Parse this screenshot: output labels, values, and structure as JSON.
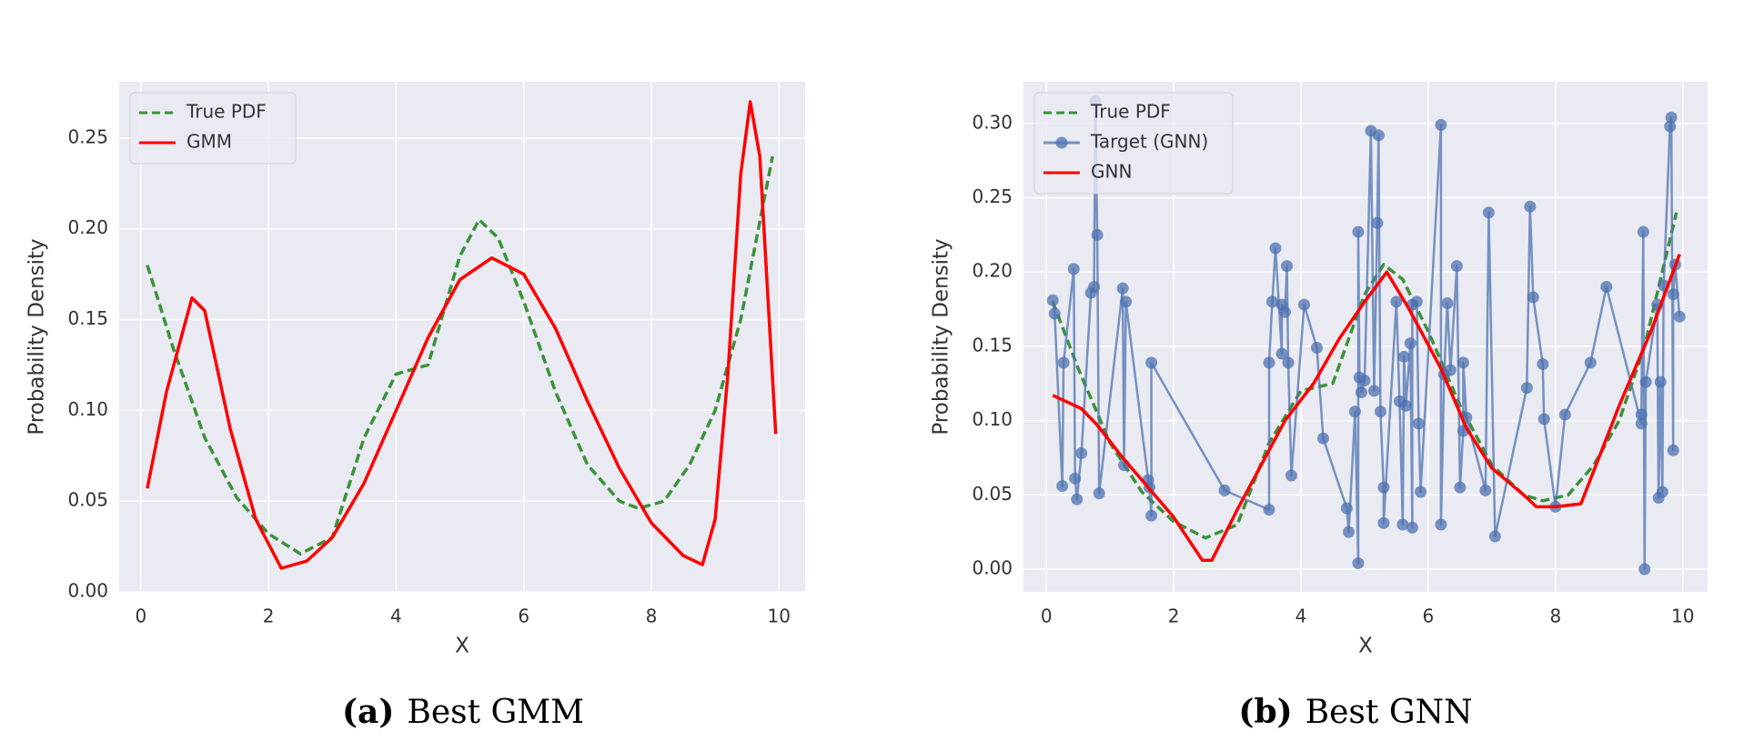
{
  "chart_data": [
    {
      "type": "line",
      "xlabel": "X",
      "ylabel": "Probability Density",
      "caption_label": "(a)",
      "caption": "Best GMM",
      "xlim": [
        -0.34,
        10.41
      ],
      "ylim": [
        0,
        0.281
      ],
      "xticks": [
        0,
        2,
        4,
        6,
        8,
        10
      ],
      "yticks": [
        {
          "value": 0,
          "label": "0.00"
        },
        {
          "value": 0.05,
          "label": "0.05"
        },
        {
          "value": 0.1,
          "label": "0.10"
        },
        {
          "value": 0.15,
          "label": "0.15"
        },
        {
          "value": 0.2,
          "label": "0.20"
        },
        {
          "value": 0.25,
          "label": "0.25"
        }
      ],
      "grid": true,
      "legend": "upper left",
      "series": [
        {
          "name": "True PDF",
          "color": "#3a923a",
          "style": "dashed",
          "x": [
            0.1,
            0.5,
            1.0,
            1.5,
            2.0,
            2.5,
            3.0,
            3.5,
            4.0,
            4.5,
            5.0,
            5.3,
            5.6,
            6.0,
            6.5,
            7.0,
            7.5,
            7.8,
            8.2,
            8.6,
            9.0,
            9.4,
            9.9
          ],
          "values": [
            0.18,
            0.135,
            0.085,
            0.052,
            0.032,
            0.021,
            0.03,
            0.085,
            0.12,
            0.125,
            0.185,
            0.205,
            0.195,
            0.16,
            0.11,
            0.07,
            0.05,
            0.046,
            0.05,
            0.07,
            0.1,
            0.15,
            0.24
          ]
        },
        {
          "name": "GMM",
          "color": "#ff0000",
          "style": "solid",
          "x": [
            0.1,
            0.4,
            0.8,
            1.0,
            1.4,
            1.8,
            2.2,
            2.6,
            3.0,
            3.5,
            4.0,
            4.5,
            5.0,
            5.5,
            6.0,
            6.5,
            7.0,
            7.5,
            8.0,
            8.5,
            8.8,
            9.0,
            9.2,
            9.4,
            9.55,
            9.7,
            9.95
          ],
          "values": [
            0.057,
            0.11,
            0.162,
            0.155,
            0.09,
            0.04,
            0.013,
            0.017,
            0.03,
            0.06,
            0.1,
            0.14,
            0.172,
            0.184,
            0.175,
            0.145,
            0.105,
            0.068,
            0.038,
            0.02,
            0.015,
            0.04,
            0.12,
            0.23,
            0.27,
            0.24,
            0.087
          ]
        }
      ]
    },
    {
      "type": "line",
      "xlabel": "X",
      "ylabel": "Probability Density",
      "caption_label": "(b)",
      "caption": "Best GNN",
      "xlim": [
        -0.36,
        10.39
      ],
      "ylim": [
        -0.0153,
        0.328
      ],
      "xticks": [
        0,
        2,
        4,
        6,
        8,
        10
      ],
      "yticks": [
        {
          "value": 0,
          "label": "0.00"
        },
        {
          "value": 0.05,
          "label": "0.05"
        },
        {
          "value": 0.1,
          "label": "0.10"
        },
        {
          "value": 0.15,
          "label": "0.15"
        },
        {
          "value": 0.2,
          "label": "0.20"
        },
        {
          "value": 0.25,
          "label": "0.25"
        },
        {
          "value": 0.3,
          "label": "0.30"
        }
      ],
      "grid": true,
      "legend": "upper left",
      "series": [
        {
          "name": "True PDF",
          "color": "#3a923a",
          "style": "dashed",
          "x": [
            0.1,
            0.5,
            1.0,
            1.5,
            2.0,
            2.5,
            3.0,
            3.5,
            4.0,
            4.5,
            5.0,
            5.3,
            5.6,
            6.0,
            6.5,
            7.0,
            7.5,
            7.8,
            8.2,
            8.6,
            9.0,
            9.4,
            9.9
          ],
          "values": [
            0.18,
            0.135,
            0.085,
            0.052,
            0.032,
            0.021,
            0.03,
            0.085,
            0.12,
            0.125,
            0.185,
            0.205,
            0.195,
            0.16,
            0.11,
            0.07,
            0.05,
            0.046,
            0.05,
            0.07,
            0.1,
            0.15,
            0.24
          ]
        },
        {
          "name": "Target (GNN)",
          "color": "#4c72b0",
          "style": "solid",
          "marker": "o",
          "x": [
            0.1,
            0.13,
            0.25,
            0.27,
            0.43,
            0.45,
            0.48,
            0.55,
            0.7,
            0.75,
            0.77,
            0.8,
            0.83,
            1.2,
            1.22,
            1.25,
            1.6,
            1.62,
            1.65,
            1.65,
            2.8,
            3.5,
            3.5,
            3.55,
            3.6,
            3.7,
            3.7,
            3.75,
            3.78,
            3.8,
            3.85,
            4.05,
            4.25,
            4.35,
            4.72,
            4.75,
            4.85,
            4.9,
            4.9,
            4.92,
            4.95,
            5.0,
            5.1,
            5.15,
            5.2,
            5.22,
            5.25,
            5.3,
            5.3,
            5.5,
            5.55,
            5.6,
            5.62,
            5.65,
            5.72,
            5.75,
            5.75,
            5.82,
            5.85,
            5.88,
            6.2,
            6.2,
            6.25,
            6.3,
            6.35,
            6.45,
            6.5,
            6.55,
            6.55,
            6.6,
            6.9,
            6.95,
            7.05,
            7.55,
            7.6,
            7.65,
            7.8,
            7.82,
            8.0,
            8.15,
            8.55,
            8.8,
            9.35,
            9.35,
            9.38,
            9.4,
            9.42,
            9.6,
            9.62,
            9.65,
            9.68,
            9.7,
            9.8,
            9.82,
            9.85,
            9.85,
            9.88,
            9.95
          ],
          "values": [
            0.181,
            0.172,
            0.056,
            0.139,
            0.202,
            0.061,
            0.047,
            0.078,
            0.186,
            0.19,
            0.315,
            0.225,
            0.051,
            0.189,
            0.07,
            0.18,
            0.06,
            0.055,
            0.036,
            0.139,
            0.053,
            0.04,
            0.139,
            0.18,
            0.216,
            0.145,
            0.178,
            0.173,
            0.204,
            0.139,
            0.063,
            0.178,
            0.149,
            0.088,
            0.041,
            0.025,
            0.106,
            0.004,
            0.227,
            0.129,
            0.119,
            0.127,
            0.295,
            0.12,
            0.233,
            0.292,
            0.106,
            0.055,
            0.031,
            0.18,
            0.113,
            0.03,
            0.143,
            0.11,
            0.152,
            0.028,
            0.178,
            0.18,
            0.098,
            0.052,
            0.299,
            0.03,
            0.131,
            0.179,
            0.134,
            0.204,
            0.055,
            0.093,
            0.139,
            0.102,
            0.053,
            0.24,
            0.022,
            0.122,
            0.244,
            0.183,
            0.138,
            0.101,
            0.042,
            0.104,
            0.139,
            0.19,
            0.098,
            0.104,
            0.227,
            0.0,
            0.126,
            0.178,
            0.048,
            0.126,
            0.052,
            0.191,
            0.298,
            0.304,
            0.08,
            0.185,
            0.205,
            0.17
          ]
        },
        {
          "name": "GNN",
          "color": "#ff0000",
          "style": "solid",
          "x": [
            0.1,
            0.55,
            0.8,
            1.2,
            1.6,
            2.0,
            2.45,
            2.6,
            3.0,
            3.5,
            3.75,
            4.2,
            4.6,
            5.0,
            5.35,
            5.7,
            6.2,
            6.6,
            7.0,
            7.5,
            7.7,
            8.0,
            8.4,
            9.0,
            9.5,
            9.95
          ],
          "values": [
            0.117,
            0.108,
            0.097,
            0.075,
            0.055,
            0.035,
            0.006,
            0.006,
            0.04,
            0.08,
            0.1,
            0.125,
            0.155,
            0.18,
            0.2,
            0.175,
            0.135,
            0.095,
            0.068,
            0.05,
            0.042,
            0.042,
            0.044,
            0.11,
            0.16,
            0.212
          ]
        }
      ]
    }
  ]
}
